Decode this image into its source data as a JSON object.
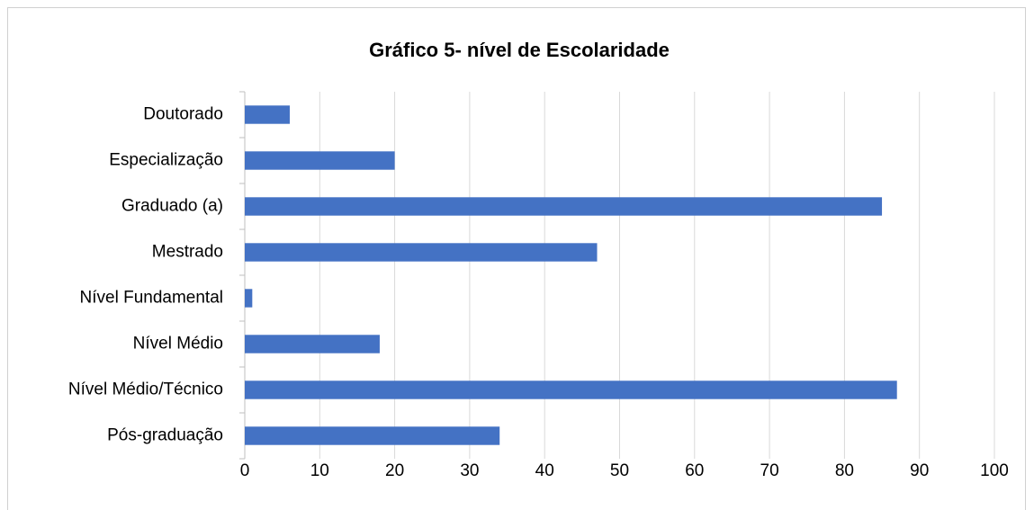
{
  "chart_data": {
    "type": "bar",
    "orientation": "horizontal",
    "title": "Gráfico 5- nível de Escolaridade",
    "categories": [
      "Doutorado",
      "Especialização",
      "Graduado (a)",
      "Mestrado",
      "Nível Fundamental",
      "Nível Médio",
      "Nível Médio/Técnico",
      "Pós-graduação"
    ],
    "values": [
      6,
      20,
      85,
      47,
      1,
      18,
      87,
      34
    ],
    "color": "#4472c4",
    "xlim": [
      0,
      100
    ],
    "xticks": [
      0,
      10,
      20,
      30,
      40,
      50,
      60,
      70,
      80,
      90,
      100
    ],
    "grid": true
  }
}
